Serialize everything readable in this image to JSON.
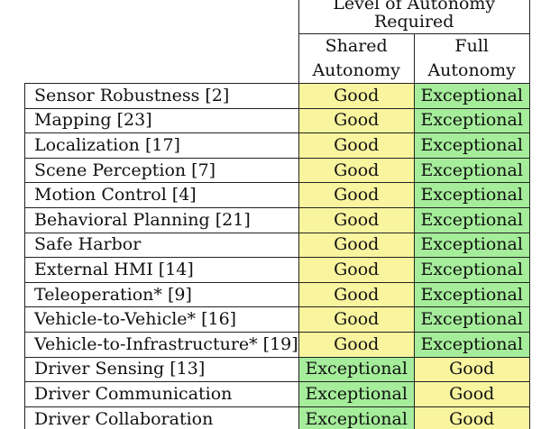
{
  "header": {
    "group_line1": "Level of Autonomy",
    "group_line2": "Required",
    "col_a": [
      "Shared",
      "Autonomy"
    ],
    "col_b": [
      "Full",
      "Autonomy"
    ]
  },
  "rows": [
    {
      "label": "Sensor Robustness [2]",
      "a": "Good",
      "b": "Exceptional"
    },
    {
      "label": "Mapping [23]",
      "a": "Good",
      "b": "Exceptional"
    },
    {
      "label": "Localization [17]",
      "a": "Good",
      "b": "Exceptional"
    },
    {
      "label": "Scene Perception [7]",
      "a": "Good",
      "b": "Exceptional"
    },
    {
      "label": "Motion Control [4]",
      "a": "Good",
      "b": "Exceptional"
    },
    {
      "label": "Behavioral Planning [21]",
      "a": "Good",
      "b": "Exceptional"
    },
    {
      "label": "Safe Harbor",
      "a": "Good",
      "b": "Exceptional"
    },
    {
      "label": "External HMI [14]",
      "a": "Good",
      "b": "Exceptional"
    },
    {
      "label": "Teleoperation* [9]",
      "a": "Good",
      "b": "Exceptional"
    },
    {
      "label": "Vehicle-to-Vehicle* [16]",
      "a": "Good",
      "b": "Exceptional"
    },
    {
      "label": "Vehicle-to-Infrastructure* [19]",
      "a": "Good",
      "b": "Exceptional"
    },
    {
      "label": "Driver Sensing [13]",
      "a": "Exceptional",
      "b": "Good"
    },
    {
      "label": "Driver Communication",
      "a": "Exceptional",
      "b": "Good"
    },
    {
      "label": "Driver Collaboration",
      "a": "Exceptional",
      "b": "Good"
    }
  ],
  "colors": {
    "good": "#f9f59f",
    "exceptional": "#a5ed9a"
  }
}
